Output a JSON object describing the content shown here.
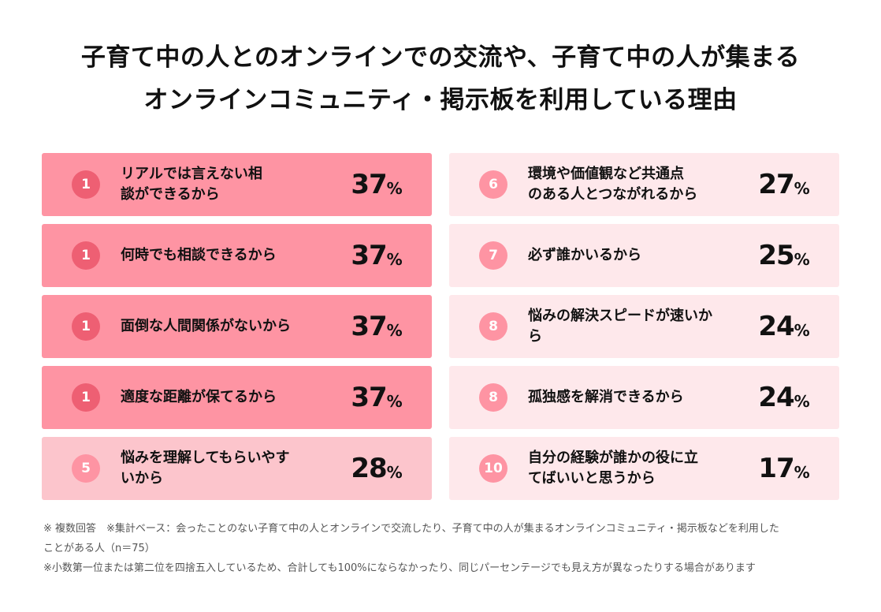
{
  "title": {
    "line1": "子育て中の人とのオンラインでの交流や、子育て中の人が集まる",
    "line2": "オンラインコミュニティ・掲示板を利用している理由"
  },
  "colors": {
    "dark_card": "#fe94a3",
    "mid_card": "#fcc5cc",
    "light_card": "#fee8eb",
    "badge_dark": "#ee5f73",
    "badge_light": "#fe94a3"
  },
  "chart_data": {
    "type": "table",
    "title": "子育て中の人とのオンラインでの交流や、子育て中の人が集まるオンラインコミュニティ・掲示板を利用している理由",
    "unit": "%",
    "rows": [
      {
        "rank": "1",
        "reason": "リアルでは言えない相談ができるから",
        "value": 37,
        "shade": "dark"
      },
      {
        "rank": "1",
        "reason": "何時でも相談できるから",
        "value": 37,
        "shade": "dark"
      },
      {
        "rank": "1",
        "reason": "面倒な人間関係がないから",
        "value": 37,
        "shade": "dark"
      },
      {
        "rank": "1",
        "reason": "適度な距離が保てるから",
        "value": 37,
        "shade": "dark"
      },
      {
        "rank": "5",
        "reason": "悩みを理解してもらいやすいから",
        "value": 28,
        "shade": "mid"
      },
      {
        "rank": "6",
        "reason": "環境や価値観など共通点のある人とつながれるから",
        "value": 27,
        "shade": "light"
      },
      {
        "rank": "7",
        "reason": "必ず誰かいるから",
        "value": 25,
        "shade": "light"
      },
      {
        "rank": "8",
        "reason": "悩みの解決スピードが速いから",
        "value": 24,
        "shade": "light"
      },
      {
        "rank": "8",
        "reason": "孤独感を解消できるから",
        "value": 24,
        "shade": "light"
      },
      {
        "rank": "10",
        "reason": "自分の経験が誰かの役に立てばいいと思うから",
        "value": 17,
        "shade": "light"
      }
    ]
  },
  "notes": {
    "line1": "※ 複数回答　※集計ベース：会ったことのない子育て中の人とオンラインで交流したり、子育て中の人が集まるオンラインコミュニティ・掲示板などを利用した",
    "line2": "ことがある人（n＝75）",
    "line3": "※小数第一位または第二位を四捨五入しているため、合計しても100%にならなかったり、同じパーセンテージでも見え方が異なったりする場合があります"
  }
}
